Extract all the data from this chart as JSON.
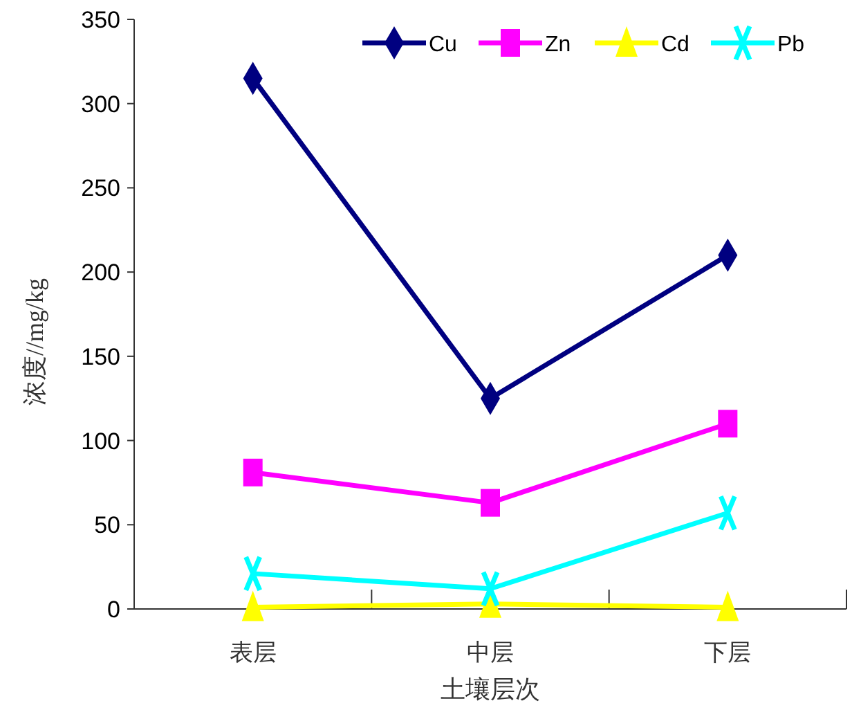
{
  "chart_data": {
    "type": "line",
    "xlabel": "土壤层次",
    "ylabel": "浓度//mg/kg",
    "categories": [
      "表层",
      "中层",
      "下层"
    ],
    "series": [
      {
        "name": "Cu",
        "color": "#000080",
        "marker": "diamond",
        "values": [
          315,
          125,
          210
        ]
      },
      {
        "name": "Zn",
        "color": "#ff00ff",
        "marker": "square",
        "values": [
          81,
          63,
          110
        ]
      },
      {
        "name": "Cd",
        "color": "#ffff00",
        "marker": "triangle",
        "values": [
          1,
          3,
          1
        ]
      },
      {
        "name": "Pb",
        "color": "#00ffff",
        "marker": "cross",
        "values": [
          21,
          12,
          57
        ]
      }
    ],
    "ylim": [
      0,
      350
    ],
    "yticks": [
      0,
      50,
      100,
      150,
      200,
      250,
      300,
      350
    ],
    "legend": "top right",
    "grid": false
  }
}
